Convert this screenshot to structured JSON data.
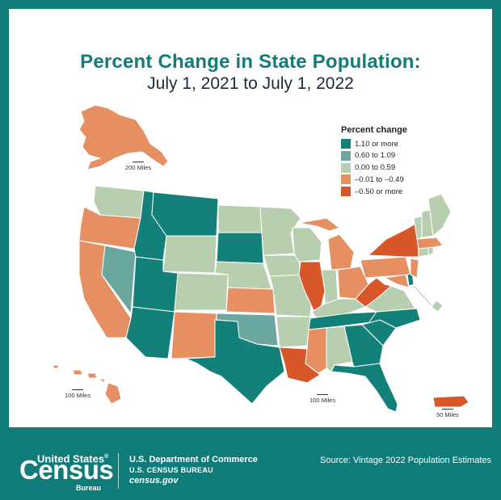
{
  "title": "Percent Change in State Population:",
  "subtitle": "July 1, 2021 to July 1, 2022",
  "legend": {
    "title": "Percent change",
    "items": [
      {
        "label": "1.10 or more",
        "color": "#13807a"
      },
      {
        "label": "0.60 to 1.09",
        "color": "#6aa89f"
      },
      {
        "label": "0.00 to 0.59",
        "color": "#b7cfae"
      },
      {
        "label": "–0.01 to –0.49",
        "color": "#e68f62"
      },
      {
        "label": "–0.50 or more",
        "color": "#d8572a"
      }
    ]
  },
  "scales": {
    "alaska": "200 Miles",
    "hawaii": "100 Miles",
    "mainland": "100 Miles",
    "puerto_rico": "50 Miles"
  },
  "footer": {
    "logo_top": "United States",
    "logo_reg": "®",
    "logo_main": "Census",
    "logo_sub": "Bureau",
    "dept_line1": "U.S. Department of Commerce",
    "dept_line2": "U.S. CENSUS BUREAU",
    "dept_line3": "census.gov",
    "source": "Source: Vintage 2022 Population Estimates"
  }
}
